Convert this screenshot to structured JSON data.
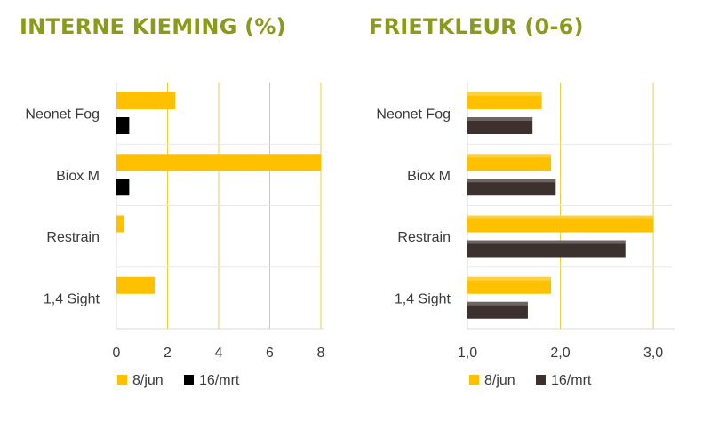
{
  "chart_data": [
    {
      "type": "bar",
      "orientation": "horizontal",
      "title": "INTERNE KIEMING (%)",
      "categories": [
        "Neonet Fog",
        "Biox M",
        "Restrain",
        "1,4 Sight"
      ],
      "series": [
        {
          "name": "8/jun",
          "values": [
            2.3,
            8.0,
            0.3,
            1.5
          ],
          "color": "#ffc000"
        },
        {
          "name": "16/mrt",
          "values": [
            0.5,
            0.5,
            0,
            0
          ],
          "color": "#000000"
        }
      ],
      "xlim": [
        0,
        8
      ],
      "xticks": [
        "0",
        "2",
        "4",
        "6",
        "8"
      ],
      "grid": true,
      "legend": "bottom"
    },
    {
      "type": "bar",
      "orientation": "horizontal",
      "title": "FRIETKLEUR (0-6)",
      "categories": [
        "Neonet Fog",
        "Biox M",
        "Restrain",
        "1,4 Sight"
      ],
      "series": [
        {
          "name": "8/jun",
          "values": [
            1.8,
            1.9,
            3.0,
            1.9
          ],
          "color": "#ffc000"
        },
        {
          "name": "16/mrt",
          "values": [
            1.7,
            1.95,
            2.7,
            1.65
          ],
          "color": "#3d3130"
        }
      ],
      "xlim": [
        1.0,
        3.2
      ],
      "xticks": [
        "1,0",
        "2,0",
        "3,0"
      ],
      "xtick_values": [
        1.0,
        2.0,
        3.0
      ],
      "grid": true,
      "legend": "bottom"
    }
  ]
}
